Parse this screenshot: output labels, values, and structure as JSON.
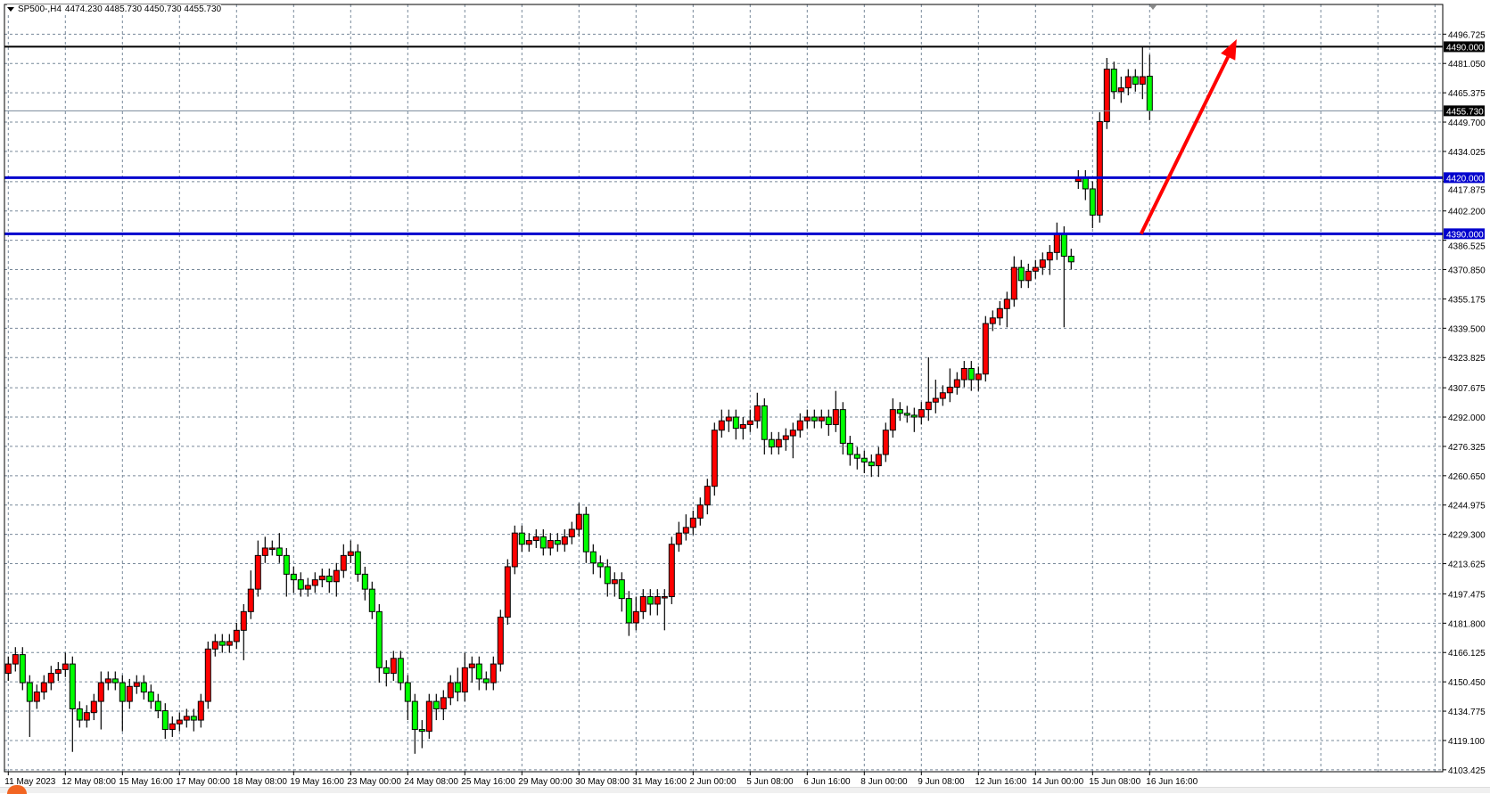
{
  "header": {
    "symbol": "SP500-,H4",
    "ohlc": "4474.230 4485.730 4450.730 4455.730",
    "menu_icon": "triangle-down-icon"
  },
  "colors": {
    "bull": "#ff0000",
    "bear": "#00ff00",
    "outline": "#000000",
    "grid": "#778899",
    "support": "#0000cd",
    "resistance": "#000000",
    "arrow": "#ff0000",
    "bid": "#778899"
  },
  "chart_data": {
    "type": "candlestick",
    "timeframe": "H4",
    "ylim": [
      4102.4,
      4512.6
    ],
    "grid": true,
    "y_ticks": [
      "4496.725",
      "4481.050",
      "4465.375",
      "4449.700",
      "4434.025",
      "4417.875",
      "4402.200",
      "4386.525",
      "4370.850",
      "4355.175",
      "4339.500",
      "4323.825",
      "4307.675",
      "4292.000",
      "4276.325",
      "4260.650",
      "4244.975",
      "4229.300",
      "4213.625",
      "4197.475",
      "4181.800",
      "4166.125",
      "4150.450",
      "4134.775",
      "4119.100",
      "4103.425"
    ],
    "x_tick_step_bars": 8,
    "x_ticks": [
      "11 May 2023",
      "12 May 08:00",
      "15 May 16:00",
      "17 May 00:00",
      "18 May 08:00",
      "19 May 16:00",
      "23 May 00:00",
      "24 May 08:00",
      "25 May 16:00",
      "29 May 00:00",
      "30 May 08:00",
      "31 May 16:00",
      "2 Jun 00:00",
      "5 Jun 08:00",
      "6 Jun 16:00",
      "8 Jun 00:00",
      "9 Jun 08:00",
      "12 Jun 16:00",
      "14 Jun 00:00",
      "15 Jun 08:00",
      "16 Jun 16:00"
    ],
    "open": [
      4155,
      4160,
      4165,
      4150,
      4140,
      4145,
      4150,
      4155,
      4157,
      4160,
      4136,
      4130,
      4134,
      4140,
      4150,
      4152,
      4150,
      4140,
      4148,
      4150,
      4145,
      4140,
      4135,
      4125,
      4128,
      4130,
      4132,
      4130,
      4140,
      4168,
      4172,
      4170,
      4172,
      4178,
      4188,
      4200,
      4218,
      4222,
      4222,
      4218,
      4208,
      4205,
      4200,
      4202,
      4205,
      4207,
      4204,
      4210,
      4218,
      4220,
      4208,
      4200,
      4188,
      4158,
      4155,
      4163,
      4150,
      4140,
      4125,
      4124,
      4140,
      4136,
      4142,
      4150,
      4145,
      4158,
      4160,
      4152,
      4150,
      4160,
      4185,
      4212,
      4230,
      4224,
      4226,
      4228,
      4222,
      4226,
      4224,
      4228,
      4232,
      4240,
      4220,
      4214,
      4212,
      4203,
      4205,
      4195,
      4182,
      4188,
      4196,
      4192,
      4196,
      4196,
      4224,
      4230,
      4233,
      4238,
      4245,
      4255,
      4285,
      4290,
      4292,
      4286,
      4288,
      4290,
      4298,
      4280,
      4276,
      4280,
      4282,
      4285,
      4290,
      4292,
      4290,
      4292,
      4288,
      4296,
      4278,
      4272,
      4270,
      4268,
      4266,
      4272,
      4285,
      4296,
      4294,
      4293,
      4292,
      4296,
      4300,
      4302,
      4305,
      4308,
      4312,
      4318,
      4312,
      4315,
      4342,
      4345,
      4350,
      4355,
      4372,
      4365,
      4370,
      4372,
      4376,
      4380,
      4390,
      4378,
      4418,
      4420,
      4414,
      4400,
      4450,
      4478,
      4466,
      4468,
      4474,
      4470,
      4474.23
    ],
    "high": [
      4164,
      4169,
      4169,
      4154,
      4149,
      4154,
      4159,
      4161,
      4166,
      4164,
      4140,
      4138,
      4144,
      4156,
      4156,
      4156,
      4154,
      4152,
      4154,
      4154,
      4149,
      4144,
      4139,
      4132,
      4134,
      4136,
      4136,
      4144,
      4172,
      4176,
      4176,
      4176,
      4182,
      4192,
      4210,
      4226,
      4228,
      4226,
      4230,
      4222,
      4212,
      4209,
      4206,
      4209,
      4211,
      4211,
      4214,
      4224,
      4226,
      4224,
      4212,
      4204,
      4192,
      4162,
      4167,
      4167,
      4154,
      4144,
      4130,
      4144,
      4144,
      4146,
      4154,
      4158,
      4166,
      4164,
      4164,
      4156,
      4164,
      4189,
      4216,
      4234,
      4234,
      4230,
      4232,
      4232,
      4230,
      4230,
      4232,
      4236,
      4246,
      4244,
      4224,
      4218,
      4216,
      4209,
      4209,
      4199,
      4196,
      4200,
      4200,
      4200,
      4200,
      4228,
      4236,
      4240,
      4242,
      4249,
      4259,
      4289,
      4296,
      4296,
      4296,
      4292,
      4296,
      4305,
      4302,
      4284,
      4284,
      4286,
      4289,
      4294,
      4296,
      4296,
      4296,
      4296,
      4306,
      4300,
      4282,
      4276,
      4274,
      4272,
      4276,
      4289,
      4302,
      4300,
      4298,
      4297,
      4300,
      4324,
      4312,
      4309,
      4318,
      4316,
      4322,
      4322,
      4319,
      4346,
      4349,
      4354,
      4359,
      4378,
      4376,
      4374,
      4376,
      4380,
      4384,
      4396,
      4394,
      4382,
      4424,
      4424,
      4418,
      4455,
      4484,
      4482,
      4474,
      4478,
      4478,
      4490,
      4485.73
    ],
    "low": [
      4151,
      4156,
      4146,
      4121,
      4136,
      4141,
      4146,
      4151,
      4153,
      4113,
      4126,
      4126,
      4130,
      4125,
      4146,
      4146,
      4124,
      4136,
      4144,
      4141,
      4136,
      4131,
      4120,
      4121,
      4124,
      4126,
      4124,
      4126,
      4136,
      4164,
      4166,
      4166,
      4168,
      4162,
      4184,
      4196,
      4214,
      4218,
      4214,
      4196,
      4198,
      4196,
      4196,
      4198,
      4201,
      4198,
      4196,
      4206,
      4214,
      4204,
      4194,
      4184,
      4150,
      4148,
      4151,
      4146,
      4130,
      4112,
      4115,
      4120,
      4130,
      4130,
      4138,
      4140,
      4140,
      4150,
      4146,
      4146,
      4146,
      4156,
      4181,
      4208,
      4220,
      4220,
      4222,
      4218,
      4218,
      4220,
      4220,
      4224,
      4228,
      4214,
      4208,
      4206,
      4196,
      4196,
      4188,
      4175,
      4178,
      4184,
      4186,
      4186,
      4178,
      4192,
      4220,
      4226,
      4229,
      4234,
      4240,
      4250,
      4281,
      4284,
      4280,
      4280,
      4284,
      4286,
      4272,
      4272,
      4272,
      4274,
      4270,
      4281,
      4286,
      4286,
      4286,
      4282,
      4284,
      4272,
      4266,
      4264,
      4262,
      4260,
      4260,
      4268,
      4281,
      4290,
      4289,
      4284,
      4288,
      4290,
      4294,
      4298,
      4300,
      4304,
      4308,
      4306,
      4306,
      4311,
      4338,
      4341,
      4340,
      4351,
      4361,
      4361,
      4366,
      4368,
      4368,
      4376,
      4340,
      4371,
      4414,
      4408,
      4393,
      4396,
      4446,
      4462,
      4460,
      4464,
      4466,
      4462,
      4450.73
    ],
    "close": [
      4160,
      4165,
      4150,
      4140,
      4145,
      4150,
      4155,
      4157,
      4160,
      4136,
      4130,
      4134,
      4140,
      4150,
      4152,
      4150,
      4140,
      4148,
      4150,
      4145,
      4140,
      4135,
      4125,
      4128,
      4130,
      4132,
      4130,
      4140,
      4168,
      4172,
      4170,
      4172,
      4178,
      4188,
      4200,
      4218,
      4222,
      4222,
      4218,
      4208,
      4205,
      4200,
      4202,
      4205,
      4207,
      4204,
      4210,
      4218,
      4220,
      4208,
      4200,
      4188,
      4158,
      4155,
      4163,
      4150,
      4140,
      4125,
      4124,
      4140,
      4136,
      4142,
      4150,
      4145,
      4158,
      4160,
      4152,
      4150,
      4160,
      4185,
      4212,
      4230,
      4224,
      4226,
      4228,
      4222,
      4226,
      4224,
      4228,
      4232,
      4240,
      4220,
      4214,
      4212,
      4203,
      4205,
      4195,
      4182,
      4188,
      4196,
      4192,
      4196,
      4196,
      4224,
      4230,
      4233,
      4238,
      4245,
      4255,
      4285,
      4290,
      4292,
      4286,
      4288,
      4290,
      4298,
      4280,
      4276,
      4280,
      4282,
      4285,
      4290,
      4292,
      4290,
      4292,
      4288,
      4296,
      4278,
      4272,
      4270,
      4268,
      4266,
      4272,
      4285,
      4296,
      4294,
      4293,
      4292,
      4296,
      4300,
      4302,
      4305,
      4308,
      4312,
      4318,
      4312,
      4315,
      4342,
      4345,
      4350,
      4355,
      4372,
      4365,
      4370,
      4372,
      4376,
      4380,
      4390,
      4378,
      4375,
      4420,
      4414,
      4400,
      4450,
      4478,
      4466,
      4468,
      4474,
      4470,
      4474,
      4455.73
    ],
    "levels": [
      {
        "price": 4490.0,
        "label": "4490.000",
        "kind": "resistance"
      },
      {
        "price": 4420.0,
        "label": "4420.000",
        "kind": "support"
      },
      {
        "price": 4390.0,
        "label": "4390.000",
        "kind": "support"
      },
      {
        "price": 4455.73,
        "label": "4455.730",
        "kind": "bid"
      }
    ],
    "arrow": {
      "from": {
        "bar": 158.8,
        "price": 4390
      },
      "to": {
        "bar": 172.2,
        "price": 4494
      }
    }
  }
}
